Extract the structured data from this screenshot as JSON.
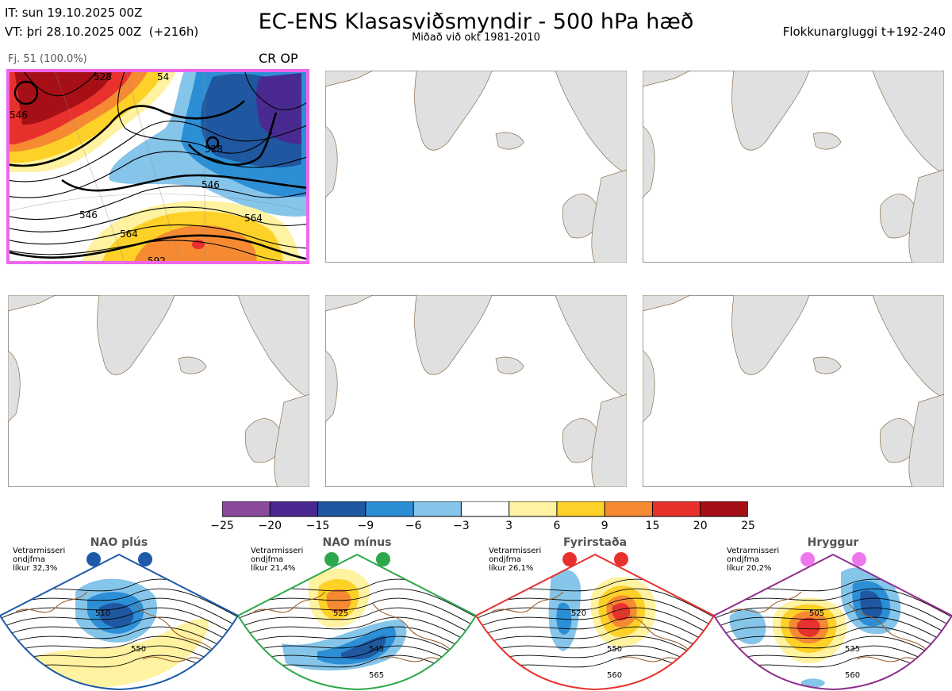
{
  "header": {
    "init_time": "IT: sun 19.10.2025 00Z",
    "valid_time": "VT: þri 28.10.2025 00Z",
    "lead_time": "(+216h)",
    "title": "EC-ENS Klasasviðsmyndir - 500 hPa hæð",
    "subtitle": "Miðað við okt 1981-2010",
    "window": "Flokkunargluggi t+192-240"
  },
  "panels": {
    "main": {
      "members_label": "Fj. 51 (100.0%)",
      "flags": "CR OP",
      "contour_labels": [
        "546",
        "546",
        "564",
        "564",
        "528",
        "546",
        "592",
        "528",
        "54"
      ]
    }
  },
  "colorbar": {
    "ticks": [
      "−25",
      "−20",
      "−15",
      "−9",
      "−6",
      "−3",
      "3",
      "6",
      "9",
      "15",
      "20",
      "25"
    ],
    "colors": [
      "#8a4a9b",
      "#4a2a90",
      "#1f57a0",
      "#2c8fd6",
      "#86c5ea",
      "#ffffff",
      "#fff2a0",
      "#fdd127",
      "#f58a33",
      "#e8312c",
      "#a50f15"
    ]
  },
  "regimes": [
    {
      "name": "NAO plús",
      "info": "Vetrarmisseri\nondjfma\nlíkur 32,3%",
      "border_color": "#1e5aa8",
      "dot_color": "#1e5aa8",
      "contour_labels": [
        "510",
        "550"
      ]
    },
    {
      "name": "NAO mínus",
      "info": "Vetrarmisseri\nondjfma\nlíkur 21,4%",
      "border_color": "#2ca84a",
      "dot_color": "#2ca84a",
      "contour_labels": [
        "525",
        "545",
        "565"
      ]
    },
    {
      "name": "Fyrirstaða",
      "info": "Vetrarmisseri\nondjfma\nlíkur 26,1%",
      "border_color": "#e8312c",
      "dot_color": "#e8312c",
      "contour_labels": [
        "520",
        "550",
        "560"
      ]
    },
    {
      "name": "Hryggur",
      "info": "Vetrarmisseri\nondjfma\nlíkur 20,2%",
      "border_color": "#8e2e8e",
      "dot_color": "#ee77ee",
      "contour_labels": [
        "505",
        "535",
        "560"
      ]
    }
  ]
}
